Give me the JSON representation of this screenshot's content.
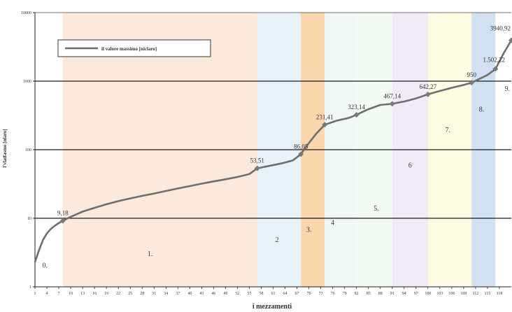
{
  "chart_data": {
    "type": "line",
    "title": "",
    "xlabel": "i mezzamenti",
    "ylabel": "l'vlatfasmo [nlaro]",
    "y_scale": "log",
    "ylim": [
      1,
      10000
    ],
    "xlim": [
      1,
      121
    ],
    "grid": true,
    "legend": {
      "position": "top-left",
      "entries": [
        "il valore massimo [niclaro]"
      ]
    },
    "y_tick_labels": [
      {
        "value": 1,
        "label": "1"
      },
      {
        "value": 10,
        "label": "10"
      },
      {
        "value": 100,
        "label": "100"
      },
      {
        "value": 1000,
        "label": "1000"
      },
      {
        "value": 10000,
        "label": "10000"
      }
    ],
    "x_tick_labels": [
      {
        "value": 1,
        "label": "1"
      },
      {
        "value": 4,
        "label": "4"
      },
      {
        "value": 7,
        "label": "7"
      },
      {
        "value": 10,
        "label": "10"
      },
      {
        "value": 13,
        "label": "13"
      },
      {
        "value": 16,
        "label": "16"
      },
      {
        "value": 19,
        "label": "19"
      },
      {
        "value": 22,
        "label": "22"
      },
      {
        "value": 25,
        "label": "25"
      },
      {
        "value": 28,
        "label": "28"
      },
      {
        "value": 31,
        "label": "31"
      },
      {
        "value": 34,
        "label": "34"
      },
      {
        "value": 37,
        "label": "37"
      },
      {
        "value": 40,
        "label": "40"
      },
      {
        "value": 43,
        "label": "43"
      },
      {
        "value": 46,
        "label": "46"
      },
      {
        "value": 49,
        "label": "49"
      },
      {
        "value": 52,
        "label": "52"
      },
      {
        "value": 55,
        "label": "55"
      },
      {
        "value": 58,
        "label": "58"
      },
      {
        "value": 61,
        "label": "61"
      },
      {
        "value": 64,
        "label": "64"
      },
      {
        "value": 67,
        "label": "67"
      },
      {
        "value": 70,
        "label": "70"
      },
      {
        "value": 73,
        "label": "73"
      },
      {
        "value": 76,
        "label": "76"
      },
      {
        "value": 79,
        "label": "79"
      },
      {
        "value": 82,
        "label": "82"
      },
      {
        "value": 85,
        "label": "85"
      },
      {
        "value": 88,
        "label": "88"
      },
      {
        "value": 91,
        "label": "91"
      },
      {
        "value": 94,
        "label": "94"
      },
      {
        "value": 97,
        "label": "97"
      },
      {
        "value": 100,
        "label": "100"
      },
      {
        "value": 103,
        "label": "103"
      },
      {
        "value": 106,
        "label": "106"
      },
      {
        "value": 109,
        "label": "109"
      },
      {
        "value": 112,
        "label": "112"
      },
      {
        "value": 115,
        "label": "115"
      },
      {
        "value": 118,
        "label": "118"
      }
    ],
    "series": [
      {
        "name": "il valore massimo [niclaro]",
        "color": "#6e6e6e",
        "points": [
          [
            1,
            2.3
          ],
          [
            2,
            3.4
          ],
          [
            3,
            4.8
          ],
          [
            4,
            6.0
          ],
          [
            5,
            7.0
          ],
          [
            6,
            7.8
          ],
          [
            7,
            8.5
          ],
          [
            8,
            9.18
          ],
          [
            10,
            10.5
          ],
          [
            13,
            12.5
          ],
          [
            16,
            14.2
          ],
          [
            19,
            16.0
          ],
          [
            22,
            17.8
          ],
          [
            25,
            19.5
          ],
          [
            28,
            21.2
          ],
          [
            31,
            23.0
          ],
          [
            34,
            25.0
          ],
          [
            37,
            27.2
          ],
          [
            40,
            29.5
          ],
          [
            43,
            32.0
          ],
          [
            46,
            34.5
          ],
          [
            49,
            37.0
          ],
          [
            52,
            40.0
          ],
          [
            55,
            44.0
          ],
          [
            57,
            53.51
          ],
          [
            60,
            58.0
          ],
          [
            63,
            63.0
          ],
          [
            66,
            70.0
          ],
          [
            68,
            86.05
          ],
          [
            70,
            125.0
          ],
          [
            72,
            175.0
          ],
          [
            74,
            231.41
          ],
          [
            77,
            265.0
          ],
          [
            80,
            290.0
          ],
          [
            82,
            323.14
          ],
          [
            85,
            390.0
          ],
          [
            88,
            450.0
          ],
          [
            91,
            467.14
          ],
          [
            94,
            505.0
          ],
          [
            97,
            560.0
          ],
          [
            100,
            642.27
          ],
          [
            103,
            720.0
          ],
          [
            106,
            800.0
          ],
          [
            109,
            880.0
          ],
          [
            111,
            950.0
          ],
          [
            113,
            1080.0
          ],
          [
            115,
            1230.0
          ],
          [
            117,
            1502.22
          ],
          [
            119,
            2500.0
          ],
          [
            121,
            3940.92
          ]
        ]
      }
    ],
    "highlighted_points": [
      {
        "x": 8,
        "y": 9.18,
        "label": "9,18"
      },
      {
        "x": 57,
        "y": 53.51,
        "label": "53,51"
      },
      {
        "x": 68,
        "y": 86.05,
        "label": "86,05"
      },
      {
        "x": 74,
        "y": 231.41,
        "label": "231,41"
      },
      {
        "x": 82,
        "y": 323.14,
        "label": "323,14"
      },
      {
        "x": 91,
        "y": 467.14,
        "label": "467,14"
      },
      {
        "x": 100,
        "y": 642.27,
        "label": "642,27"
      },
      {
        "x": 111,
        "y": 950.0,
        "label": "950"
      },
      {
        "x": 117,
        "y": 1502.22,
        "label": "1.502,22"
      },
      {
        "x": 121,
        "y": 3940.92,
        "label": "3940,92"
      }
    ],
    "zones": [
      {
        "label": "0.",
        "x_start": 1,
        "x_end": 8,
        "color": "#ffffff",
        "label_x": 3.5,
        "label_y": 1.9
      },
      {
        "label": "1.",
        "x_start": 8,
        "x_end": 57,
        "color": "#fbe5d6",
        "label_x": 30,
        "label_y": 2.8
      },
      {
        "label": "2",
        "x_start": 57,
        "x_end": 68,
        "color": "#e4f1f8",
        "label_x": 62,
        "label_y": 4.5
      },
      {
        "label": "3.",
        "x_start": 68,
        "x_end": 74,
        "color": "#f8cfa0",
        "label_x": 70,
        "label_y": 6.3
      },
      {
        "label": "4",
        "x_start": 74,
        "x_end": 82,
        "color": "#eef8f4",
        "label_x": 76,
        "label_y": 8.0
      },
      {
        "label": "5.",
        "x_start": 82,
        "x_end": 91,
        "color": "#f1faf3",
        "label_x": 87,
        "label_y": 13.0
      },
      {
        "label": "6",
        "x_start": 91,
        "x_end": 100,
        "color": "#eee6f6",
        "label_x": 95.5,
        "label_y": 55.0
      },
      {
        "label": "7.",
        "x_start": 100,
        "x_end": 111,
        "color": "#fdfadc",
        "label_x": 105,
        "label_y": 180.0
      },
      {
        "label": "8.",
        "x_start": 111,
        "x_end": 117,
        "color": "#c9dcf0",
        "label_x": 113.5,
        "label_y": 360.0
      },
      {
        "label": "9.",
        "x_start": 117,
        "x_end": 121,
        "color": "#ffffff",
        "label_x": 120,
        "label_y": 720.0
      }
    ]
  }
}
